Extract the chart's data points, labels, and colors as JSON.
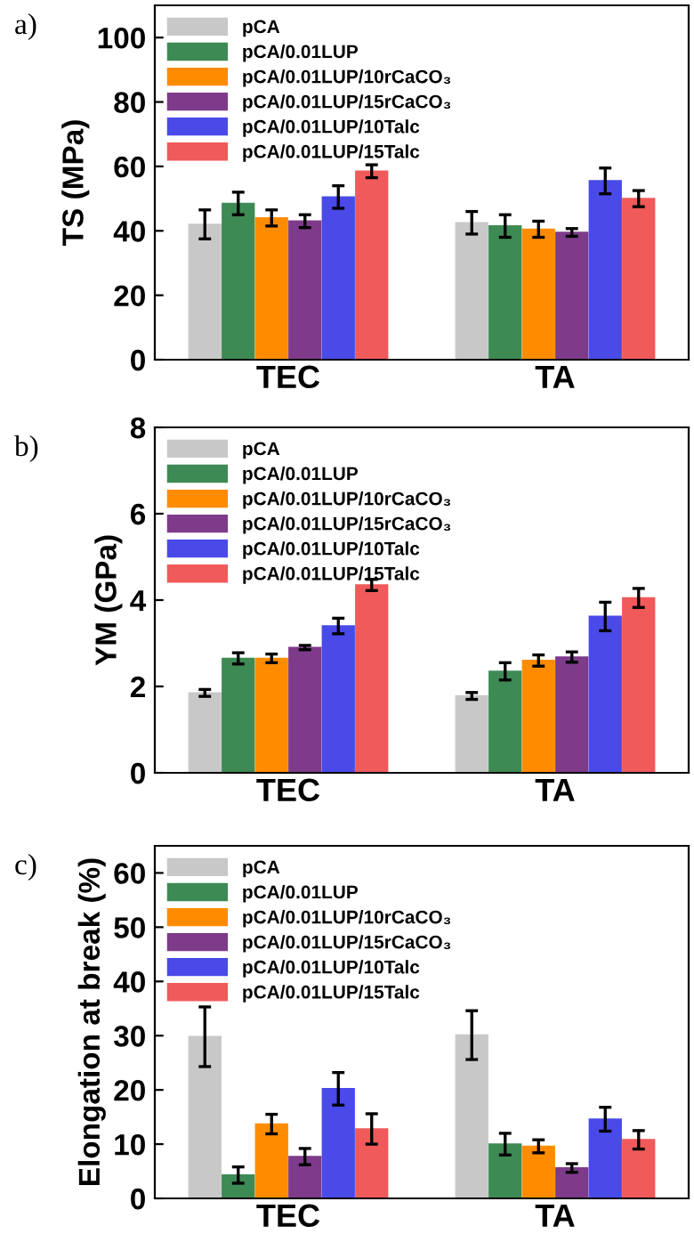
{
  "chart_data": [
    {
      "type": "bar",
      "ylabel": "TS (MPa)",
      "annotations": [
        "a)"
      ],
      "categories": [
        "TEC",
        "TA"
      ],
      "ylim": [
        0,
        110
      ],
      "yticks": [
        0,
        20,
        40,
        60,
        80,
        100
      ],
      "legend": "top left",
      "grid": false,
      "series": [
        {
          "name": "pCA",
          "color": "#c8c8c8",
          "values": [
            42,
            42.5
          ],
          "errors": [
            4.5,
            3.5
          ]
        },
        {
          "name": "pCA/0.01LUP",
          "color": "#3e8a55",
          "values": [
            48.5,
            41.5
          ],
          "errors": [
            3.5,
            3.5
          ]
        },
        {
          "name": "pCA/0.01LUP/10rCaCO₃",
          "color": "#ff8c00",
          "values": [
            44,
            40.5
          ],
          "errors": [
            2.5,
            2.5
          ]
        },
        {
          "name": "pCA/0.01LUP/15rCaCO₃",
          "color": "#7e3b8a",
          "values": [
            43,
            39.5
          ],
          "errors": [
            2,
            1.2
          ]
        },
        {
          "name": "pCA/0.01LUP/10Talc",
          "color": "#4a4ae8",
          "values": [
            50.5,
            55.5
          ],
          "errors": [
            3.5,
            4
          ]
        },
        {
          "name": "pCA/0.01LUP/15Talc",
          "color": "#f05a5a",
          "values": [
            58.5,
            50
          ],
          "errors": [
            2,
            2.5
          ]
        }
      ]
    },
    {
      "type": "bar",
      "ylabel": "YM (GPa)",
      "annotations": [
        "b)"
      ],
      "categories": [
        "TEC",
        "TA"
      ],
      "ylim": [
        0,
        8
      ],
      "yticks": [
        0,
        2,
        4,
        6,
        8
      ],
      "legend": "top left",
      "grid": false,
      "series": [
        {
          "name": "pCA",
          "color": "#c8c8c8",
          "values": [
            1.85,
            1.78
          ],
          "errors": [
            0.08,
            0.08
          ]
        },
        {
          "name": "pCA/0.01LUP",
          "color": "#3e8a55",
          "values": [
            2.65,
            2.35
          ],
          "errors": [
            0.13,
            0.2
          ]
        },
        {
          "name": "pCA/0.01LUP/10rCaCO₃",
          "color": "#ff8c00",
          "values": [
            2.65,
            2.6
          ],
          "errors": [
            0.1,
            0.13
          ]
        },
        {
          "name": "pCA/0.01LUP/15rCaCO₃",
          "color": "#7e3b8a",
          "values": [
            2.9,
            2.68
          ],
          "errors": [
            0.05,
            0.12
          ]
        },
        {
          "name": "pCA/0.01LUP/10Talc",
          "color": "#4a4ae8",
          "values": [
            3.4,
            3.62
          ],
          "errors": [
            0.18,
            0.33
          ]
        },
        {
          "name": "pCA/0.01LUP/15Talc",
          "color": "#f05a5a",
          "values": [
            4.35,
            4.05
          ],
          "errors": [
            0.13,
            0.22
          ]
        }
      ]
    },
    {
      "type": "bar",
      "ylabel": "Elongation at break (%)",
      "annotations": [
        "c)"
      ],
      "categories": [
        "TEC",
        "TA"
      ],
      "ylim": [
        0,
        65
      ],
      "yticks": [
        0,
        10,
        20,
        30,
        40,
        50,
        60
      ],
      "legend": "top left",
      "grid": false,
      "series": [
        {
          "name": "pCA",
          "color": "#c8c8c8",
          "values": [
            29.8,
            30.1
          ],
          "errors": [
            5.5,
            4.5
          ]
        },
        {
          "name": "pCA/0.01LUP",
          "color": "#3e8a55",
          "values": [
            4.3,
            10
          ],
          "errors": [
            1.5,
            2
          ]
        },
        {
          "name": "pCA/0.01LUP/10rCaCO₃",
          "color": "#ff8c00",
          "values": [
            13.7,
            9.6
          ],
          "errors": [
            1.8,
            1.2
          ]
        },
        {
          "name": "pCA/0.01LUP/15rCaCO₃",
          "color": "#7e3b8a",
          "values": [
            7.7,
            5.6
          ],
          "errors": [
            1.5,
            0.8
          ]
        },
        {
          "name": "pCA/0.01LUP/10Talc",
          "color": "#4a4ae8",
          "values": [
            20.2,
            14.6
          ],
          "errors": [
            3,
            2.2
          ]
        },
        {
          "name": "pCA/0.01LUP/15Talc",
          "color": "#f05a5a",
          "values": [
            12.8,
            10.8
          ],
          "errors": [
            2.8,
            1.7
          ]
        }
      ]
    }
  ]
}
